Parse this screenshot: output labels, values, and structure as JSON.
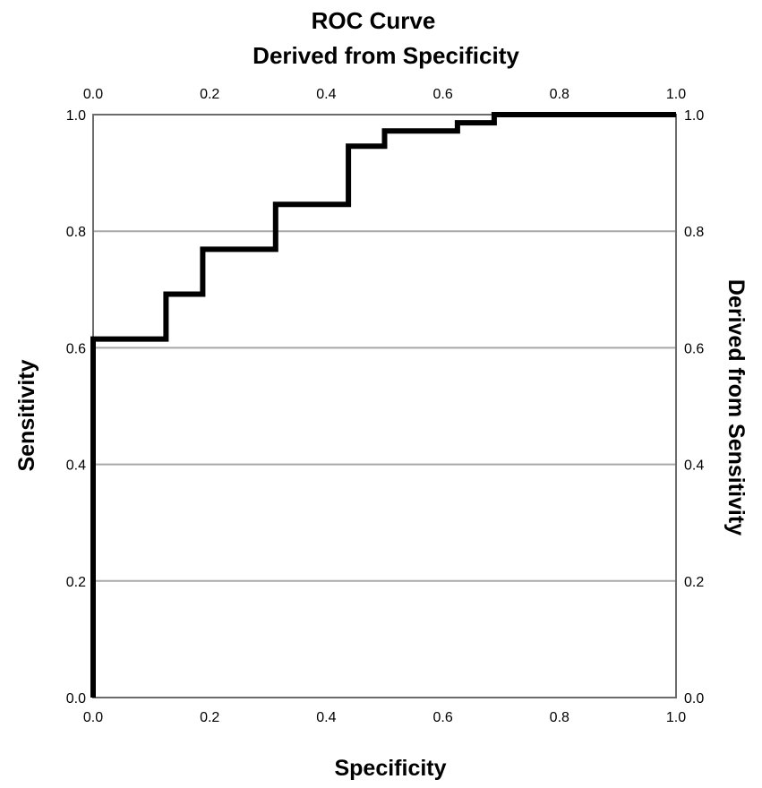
{
  "chart_data": {
    "type": "line",
    "title": "ROC Curve",
    "subtitle": "Derived from Specificity",
    "xlabel": "Specificity",
    "ylabel": "Sensitivity",
    "y2label": "Derived from Sensitivity",
    "xlim": [
      0.0,
      1.0
    ],
    "ylim": [
      0.0,
      1.0
    ],
    "x_ticks": [
      "0.0",
      "0.2",
      "0.4",
      "0.6",
      "0.8",
      "1.0"
    ],
    "y_ticks": [
      "0.0",
      "0.2",
      "0.4",
      "0.6",
      "0.8",
      "1.0"
    ],
    "x_top_ticks": [
      "0.0",
      "0.2",
      "0.4",
      "0.6",
      "0.8",
      "1.0"
    ],
    "y_right_ticks": [
      "0.0",
      "0.2",
      "0.4",
      "0.6",
      "0.8",
      "1.0"
    ],
    "gridlines": "horizontal",
    "line_color": "#000000",
    "series": [
      {
        "x": [
          0.0,
          0.0,
          0.125,
          0.125,
          0.188,
          0.188,
          0.313,
          0.313,
          0.438,
          0.438,
          0.5,
          0.5,
          0.625,
          0.625,
          0.688,
          0.688,
          1.0
        ],
        "y": [
          0.0,
          0.615,
          0.615,
          0.692,
          0.692,
          0.769,
          0.769,
          0.846,
          0.846,
          0.946,
          0.946,
          0.972,
          0.972,
          0.986,
          0.986,
          1.0,
          1.0
        ]
      }
    ]
  }
}
